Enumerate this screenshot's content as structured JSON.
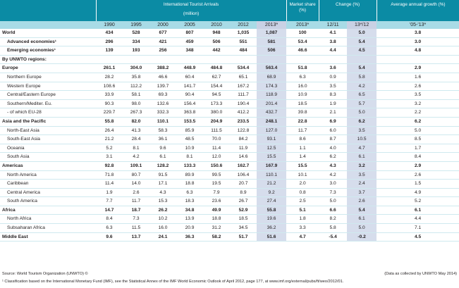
{
  "header": {
    "group_arrivals": "International Tourist Arrivals",
    "group_arrivals_unit": "(million)",
    "market_share": "Market share (%)",
    "change": "Change (%)",
    "growth": "Average annual growth (%)",
    "years": [
      "1990",
      "1995",
      "2000",
      "2005",
      "2010",
      "2012",
      "2013*"
    ],
    "share_year": "2013*",
    "change_cols": [
      "12/11",
      "13*/12"
    ],
    "growth_period": "'05-'13*"
  },
  "rows": [
    {
      "label": "World",
      "level": 0,
      "style": "bold",
      "vals": [
        "434",
        "528",
        "677",
        "807",
        "948",
        "1,035",
        "1,087",
        "100",
        "4.1",
        "5.0",
        "3.8"
      ]
    },
    {
      "label": "Advanced economies¹",
      "level": 1,
      "style": "bold",
      "vals": [
        "296",
        "334",
        "421",
        "459",
        "506",
        "551",
        "581",
        "53.4",
        "3.8",
        "5.4",
        "3.0"
      ]
    },
    {
      "label": "Emerging economies¹",
      "level": 1,
      "style": "bold",
      "vals": [
        "139",
        "193",
        "256",
        "348",
        "442",
        "484",
        "506",
        "46.6",
        "4.4",
        "4.5",
        "4.8"
      ]
    },
    {
      "label": "By UNWTO regions:",
      "level": 0,
      "style": "bold",
      "vals": [
        "",
        "",
        "",
        "",
        "",
        "",
        "",
        "",
        "",
        "",
        ""
      ]
    },
    {
      "label": "Europe",
      "level": 0,
      "style": "bold sect",
      "vals": [
        "261.1",
        "304.0",
        "388.2",
        "448.9",
        "484.8",
        "534.4",
        "563.4",
        "51.8",
        "3.6",
        "5.4",
        "2.9"
      ]
    },
    {
      "label": "Northern Europe",
      "level": 1,
      "style": "",
      "vals": [
        "28.2",
        "35.8",
        "46.6",
        "60.4",
        "62.7",
        "65.1",
        "68.9",
        "6.3",
        "0.9",
        "5.8",
        "1.6"
      ]
    },
    {
      "label": "Western Europe",
      "level": 1,
      "style": "",
      "vals": [
        "108.6",
        "112.2",
        "139.7",
        "141.7",
        "154.4",
        "167.2",
        "174.3",
        "16.0",
        "3.5",
        "4.2",
        "2.6"
      ]
    },
    {
      "label": "Central/Eastern Europe",
      "level": 1,
      "style": "",
      "vals": [
        "33.9",
        "58.1",
        "69.3",
        "90.4",
        "94.5",
        "111.7",
        "118.9",
        "10.9",
        "8.3",
        "6.5",
        "3.5"
      ]
    },
    {
      "label": "Southern/Mediter. Eu.",
      "level": 1,
      "style": "",
      "vals": [
        "90.3",
        "98.0",
        "132.6",
        "156.4",
        "173.3",
        "190.4",
        "201.4",
        "18.5",
        "1.9",
        "5.7",
        "3.2"
      ]
    },
    {
      "label": "- of which EU-28",
      "level": 1,
      "style": "",
      "vals": [
        "229.7",
        "267.3",
        "332.3",
        "363.8",
        "380.0",
        "412.2",
        "432.7",
        "39.8",
        "2.1",
        "5.0",
        "2.2"
      ]
    },
    {
      "label": "Asia and the Pacific",
      "level": 0,
      "style": "bold sect",
      "vals": [
        "55.8",
        "82.0",
        "110.1",
        "153.5",
        "204.9",
        "233.5",
        "248.1",
        "22.8",
        "6.9",
        "6.2",
        "6.2"
      ]
    },
    {
      "label": "North-East Asia",
      "level": 1,
      "style": "",
      "vals": [
        "26.4",
        "41.3",
        "58.3",
        "85.9",
        "111.5",
        "122.8",
        "127.0",
        "11.7",
        "6.0",
        "3.5",
        "5.0"
      ]
    },
    {
      "label": "South-East Asia",
      "level": 1,
      "style": "",
      "vals": [
        "21.2",
        "28.4",
        "36.1",
        "48.5",
        "70.0",
        "84.2",
        "93.1",
        "8.6",
        "8.7",
        "10.5",
        "8.5"
      ]
    },
    {
      "label": "Oceania",
      "level": 1,
      "style": "",
      "vals": [
        "5.2",
        "8.1",
        "9.6",
        "10.9",
        "11.4",
        "11.9",
        "12.5",
        "1.1",
        "4.0",
        "4.7",
        "1.7"
      ]
    },
    {
      "label": "South Asia",
      "level": 1,
      "style": "",
      "vals": [
        "3.1",
        "4.2",
        "6.1",
        "8.1",
        "12.0",
        "14.6",
        "15.5",
        "1.4",
        "6.2",
        "6.1",
        "8.4"
      ]
    },
    {
      "label": "Americas",
      "level": 0,
      "style": "bold sect",
      "vals": [
        "92.8",
        "109.1",
        "128.2",
        "133.3",
        "150.6",
        "162.7",
        "167.9",
        "15.5",
        "4.3",
        "3.2",
        "2.9"
      ]
    },
    {
      "label": "North America",
      "level": 1,
      "style": "",
      "vals": [
        "71.8",
        "80.7",
        "91.5",
        "89.9",
        "99.5",
        "106.4",
        "110.1",
        "10.1",
        "4.2",
        "3.5",
        "2.6"
      ]
    },
    {
      "label": "Caribbean",
      "level": 1,
      "style": "",
      "vals": [
        "11.4",
        "14.0",
        "17.1",
        "18.8",
        "19.5",
        "20.7",
        "21.2",
        "2.0",
        "3.0",
        "2.4",
        "1.5"
      ]
    },
    {
      "label": "Central America",
      "level": 1,
      "style": "",
      "vals": [
        "1.9",
        "2.6",
        "4.3",
        "6.3",
        "7.9",
        "8.9",
        "9.2",
        "0.8",
        "7.3",
        "3.7",
        "4.9"
      ]
    },
    {
      "label": "South America",
      "level": 1,
      "style": "",
      "vals": [
        "7.7",
        "11.7",
        "15.3",
        "18.3",
        "23.6",
        "26.7",
        "27.4",
        "2.5",
        "5.0",
        "2.6",
        "5.2"
      ]
    },
    {
      "label": "Africa",
      "level": 0,
      "style": "bold sect",
      "vals": [
        "14.7",
        "18.7",
        "26.2",
        "34.8",
        "49.9",
        "52.9",
        "55.8",
        "5.1",
        "6.6",
        "5.4",
        "6.1"
      ]
    },
    {
      "label": "North Africa",
      "level": 1,
      "style": "",
      "vals": [
        "8.4",
        "7.3",
        "10.2",
        "13.9",
        "18.8",
        "18.5",
        "19.6",
        "1.8",
        "8.2",
        "6.1",
        "4.4"
      ]
    },
    {
      "label": "Subsaharan Africa",
      "level": 1,
      "style": "",
      "vals": [
        "6.3",
        "11.5",
        "16.0",
        "20.9",
        "31.2",
        "34.5",
        "36.2",
        "3.3",
        "5.8",
        "5.0",
        "7.1"
      ]
    },
    {
      "label": "Middle East",
      "level": 0,
      "style": "bold sect",
      "vals": [
        "9.6",
        "13.7",
        "24.1",
        "36.3",
        "58.2",
        "51.7",
        "51.6",
        "4.7",
        "-5.4",
        "-0.2",
        "4.5"
      ]
    }
  ],
  "footer": {
    "source": "Source: World Tourism Organization (UNWTO) ©",
    "collected": "(Data as collected by UNWTO May 2014)",
    "note": "¹ Classification based on the International Monetary Fund (IMF), see the Statistical Annex of the IMF World Economic Outlook of April 2012, page 177, at www.imf.org/external/pubs/ft/weo/2012/01."
  }
}
